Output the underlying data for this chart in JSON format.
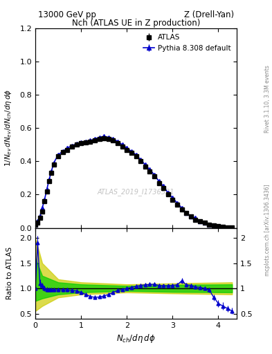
{
  "title_top": "13000 GeV pp",
  "title_right": "Z (Drell-Yan)",
  "plot_title": "Nch (ATLAS UE in Z production)",
  "ylabel_main": "1/N_{ev} dN_{ev}/dN_{ch}/dη dφ",
  "ylabel_ratio": "Ratio to ATLAS",
  "xlabel": "N_{ch}/dη dφ",
  "watermark": "ATLAS_2019_I1736531",
  "rivet_label": "Rivet 3.1.10, 3.3M events",
  "mcplots_label": "mcplots.cern.ch [arXiv:1306.3436]",
  "ylim_main": [
    0,
    1.2
  ],
  "ylim_ratio": [
    0.4,
    2.2
  ],
  "xlim": [
    0,
    4.4
  ],
  "atlas_x": [
    0.0,
    0.05,
    0.1,
    0.15,
    0.2,
    0.25,
    0.3,
    0.35,
    0.4,
    0.5,
    0.6,
    0.7,
    0.8,
    0.9,
    1.0,
    1.1,
    1.2,
    1.3,
    1.4,
    1.5,
    1.6,
    1.7,
    1.8,
    1.9,
    2.0,
    2.1,
    2.2,
    2.3,
    2.4,
    2.5,
    2.6,
    2.7,
    2.8,
    2.9,
    3.0,
    3.1,
    3.2,
    3.3,
    3.4,
    3.5,
    3.6,
    3.7,
    3.8,
    3.9,
    4.0,
    4.1,
    4.2,
    4.3
  ],
  "atlas_y": [
    0.02,
    0.03,
    0.06,
    0.1,
    0.16,
    0.22,
    0.28,
    0.33,
    0.38,
    0.43,
    0.455,
    0.47,
    0.49,
    0.5,
    0.51,
    0.515,
    0.52,
    0.525,
    0.535,
    0.54,
    0.535,
    0.525,
    0.51,
    0.49,
    0.47,
    0.45,
    0.43,
    0.4,
    0.37,
    0.34,
    0.31,
    0.27,
    0.24,
    0.2,
    0.17,
    0.14,
    0.11,
    0.09,
    0.07,
    0.05,
    0.04,
    0.03,
    0.02,
    0.015,
    0.01,
    0.007,
    0.004,
    0.002
  ],
  "atlas_yerr": [
    0.002,
    0.003,
    0.005,
    0.007,
    0.008,
    0.009,
    0.01,
    0.01,
    0.01,
    0.01,
    0.01,
    0.01,
    0.01,
    0.01,
    0.01,
    0.01,
    0.01,
    0.01,
    0.01,
    0.01,
    0.01,
    0.01,
    0.01,
    0.01,
    0.01,
    0.01,
    0.01,
    0.01,
    0.01,
    0.01,
    0.01,
    0.01,
    0.01,
    0.01,
    0.009,
    0.009,
    0.008,
    0.007,
    0.006,
    0.005,
    0.004,
    0.003,
    0.002,
    0.002,
    0.002,
    0.001,
    0.001,
    0.001
  ],
  "pythia_x": [
    0.0,
    0.05,
    0.1,
    0.15,
    0.2,
    0.25,
    0.3,
    0.35,
    0.4,
    0.5,
    0.6,
    0.7,
    0.8,
    0.9,
    1.0,
    1.1,
    1.2,
    1.3,
    1.4,
    1.5,
    1.6,
    1.7,
    1.8,
    1.9,
    2.0,
    2.1,
    2.2,
    2.3,
    2.4,
    2.5,
    2.6,
    2.7,
    2.8,
    2.9,
    3.0,
    3.1,
    3.2,
    3.3,
    3.4,
    3.5,
    3.6,
    3.7,
    3.8,
    3.9,
    4.0,
    4.1,
    4.2,
    4.3
  ],
  "pythia_y": [
    0.02,
    0.04,
    0.07,
    0.12,
    0.17,
    0.23,
    0.29,
    0.34,
    0.39,
    0.44,
    0.46,
    0.48,
    0.495,
    0.505,
    0.515,
    0.52,
    0.525,
    0.535,
    0.545,
    0.55,
    0.545,
    0.535,
    0.52,
    0.5,
    0.48,
    0.46,
    0.44,
    0.41,
    0.38,
    0.35,
    0.32,
    0.28,
    0.25,
    0.21,
    0.18,
    0.15,
    0.12,
    0.09,
    0.07,
    0.06,
    0.04,
    0.03,
    0.02,
    0.015,
    0.01,
    0.007,
    0.004,
    0.002
  ],
  "pythia_yerr": [
    0.002,
    0.003,
    0.004,
    0.005,
    0.006,
    0.007,
    0.007,
    0.007,
    0.007,
    0.007,
    0.007,
    0.007,
    0.007,
    0.007,
    0.007,
    0.007,
    0.007,
    0.007,
    0.007,
    0.007,
    0.007,
    0.007,
    0.007,
    0.007,
    0.007,
    0.007,
    0.007,
    0.007,
    0.007,
    0.007,
    0.007,
    0.007,
    0.007,
    0.007,
    0.006,
    0.006,
    0.005,
    0.005,
    0.004,
    0.004,
    0.003,
    0.003,
    0.002,
    0.002,
    0.002,
    0.001,
    0.001,
    0.001
  ],
  "ratio_x": [
    0.0,
    0.05,
    0.1,
    0.15,
    0.2,
    0.25,
    0.3,
    0.35,
    0.4,
    0.5,
    0.6,
    0.7,
    0.8,
    0.9,
    1.0,
    1.1,
    1.2,
    1.3,
    1.4,
    1.5,
    1.6,
    1.7,
    1.8,
    1.9,
    2.0,
    2.1,
    2.2,
    2.3,
    2.4,
    2.5,
    2.6,
    2.7,
    2.8,
    2.9,
    3.0,
    3.1,
    3.2,
    3.3,
    3.4,
    3.5,
    3.6,
    3.7,
    3.8,
    3.9,
    4.0,
    4.1,
    4.2,
    4.3
  ],
  "ratio_y": [
    1.0,
    1.9,
    1.1,
    1.05,
    1.0,
    0.98,
    0.97,
    0.97,
    0.97,
    0.97,
    0.97,
    0.97,
    0.96,
    0.95,
    0.92,
    0.88,
    0.84,
    0.82,
    0.83,
    0.85,
    0.88,
    0.92,
    0.96,
    0.98,
    1.0,
    1.02,
    1.04,
    1.06,
    1.07,
    1.08,
    1.08,
    1.06,
    1.05,
    1.05,
    1.06,
    1.07,
    1.15,
    1.07,
    1.06,
    1.03,
    1.02,
    1.0,
    0.97,
    0.82,
    0.7,
    0.65,
    0.6,
    0.55
  ],
  "ratio_yerr": [
    0.05,
    0.15,
    0.08,
    0.06,
    0.05,
    0.05,
    0.04,
    0.04,
    0.04,
    0.04,
    0.04,
    0.04,
    0.04,
    0.04,
    0.04,
    0.04,
    0.04,
    0.04,
    0.04,
    0.04,
    0.04,
    0.04,
    0.04,
    0.04,
    0.04,
    0.04,
    0.04,
    0.04,
    0.04,
    0.04,
    0.04,
    0.04,
    0.04,
    0.04,
    0.04,
    0.04,
    0.05,
    0.04,
    0.04,
    0.04,
    0.04,
    0.04,
    0.05,
    0.06,
    0.07,
    0.07,
    0.06,
    0.06
  ],
  "green_band_x": [
    0.0,
    0.15,
    0.5,
    1.0,
    2.0,
    3.0,
    4.3
  ],
  "green_band_lo": [
    0.75,
    0.8,
    0.88,
    0.92,
    0.95,
    0.93,
    0.92
  ],
  "green_band_hi": [
    1.6,
    1.25,
    1.12,
    1.08,
    1.05,
    1.07,
    1.08
  ],
  "yellow_band_x": [
    0.0,
    0.15,
    0.5,
    1.0,
    2.0,
    3.0,
    4.3
  ],
  "yellow_band_lo": [
    0.55,
    0.65,
    0.82,
    0.88,
    0.92,
    0.9,
    0.88
  ],
  "yellow_band_hi": [
    2.0,
    1.5,
    1.18,
    1.12,
    1.08,
    1.1,
    1.12
  ],
  "color_atlas": "#000000",
  "color_pythia": "#0000cc",
  "color_green": "#00cc00",
  "color_yellow": "#cccc00",
  "legend_entries": [
    "ATLAS",
    "Pythia 8.308 default"
  ]
}
